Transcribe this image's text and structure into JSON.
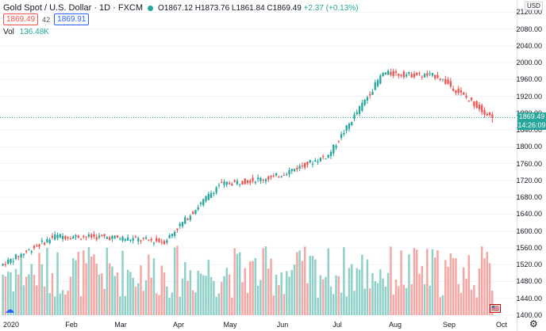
{
  "header": {
    "symbol": "Gold Spot / U.S. Dollar · 1D · FXCM",
    "open": "O1867.12",
    "high": "H1873.76",
    "low": "L1861.84",
    "close": "C1869.49",
    "change": "+2.37 (+0.13%)"
  },
  "trade": {
    "sell": "1869.49",
    "spread": "42",
    "buy": "1869.91"
  },
  "volume": {
    "label": "Vol",
    "value": "136.48K"
  },
  "axis": {
    "currency": "USD",
    "price_ticks": [
      "2120.00",
      "2080.00",
      "2040.00",
      "2000.00",
      "1960.00",
      "1920.00",
      "1880.00",
      "1840.00",
      "1800.00",
      "1760.00",
      "1720.00",
      "1680.00",
      "1640.00",
      "1600.00",
      "1560.00",
      "1520.00",
      "1480.00",
      "1440.00",
      "1400.00"
    ],
    "last_price": "1869.49",
    "countdown": "14:26:09",
    "months": [
      "2020",
      "Feb",
      "Mar",
      "Apr",
      "May",
      "Jun",
      "Jul",
      "Aug",
      "Sep",
      "Oct"
    ]
  },
  "colors": {
    "up": "#26a69a",
    "down": "#ef5350",
    "up_vol": "#8fd0c8",
    "down_vol": "#f5a7a5"
  },
  "chart_data": {
    "type": "candlestick",
    "title": "Gold Spot / U.S. Dollar · 1D · FXCM",
    "ylim": [
      1400,
      2130
    ],
    "x_labels": [
      "2020",
      "Feb",
      "Mar",
      "Apr",
      "May",
      "Jun",
      "Jul",
      "Aug",
      "Sep",
      "Oct"
    ],
    "last_close": 1869.49,
    "monthly_path": [
      {
        "month": "Jan",
        "start": 1518,
        "end": 1588
      },
      {
        "month": "Feb",
        "start": 1588,
        "end": 1585
      },
      {
        "month": "Mar",
        "start": 1585,
        "end": 1575
      },
      {
        "month": "Apr",
        "start": 1575,
        "end": 1710
      },
      {
        "month": "May",
        "start": 1710,
        "end": 1728
      },
      {
        "month": "Jun",
        "start": 1728,
        "end": 1780
      },
      {
        "month": "Jul",
        "start": 1780,
        "end": 1975
      },
      {
        "month": "Aug",
        "start": 1975,
        "end": 1968
      },
      {
        "month": "Sep",
        "start": 1968,
        "end": 1869
      }
    ]
  }
}
